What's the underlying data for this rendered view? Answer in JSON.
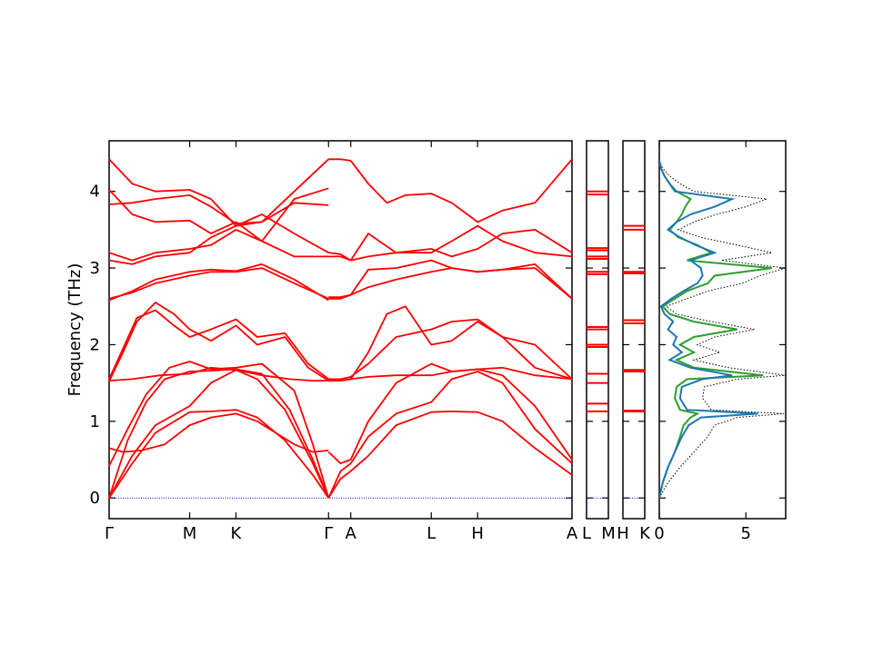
{
  "chart_data": [
    {
      "type": "line",
      "name": "phonon-band-structure",
      "ylabel": "Frequency (THz)",
      "ylim": [
        -0.27,
        4.66
      ],
      "yticks": [
        0,
        1,
        2,
        3,
        4
      ],
      "segments": [
        {
          "xlim": [
            0,
            1
          ],
          "ticks": [
            {
              "x": 0,
              "label": "Γ"
            },
            {
              "x": 0.174,
              "label": "M"
            },
            {
              "x": 0.274,
              "label": "K"
            },
            {
              "x": 0.474,
              "label": "Γ"
            },
            {
              "x": 0.522,
              "label": "A"
            },
            {
              "x": 0.696,
              "label": "L"
            },
            {
              "x": 0.796,
              "label": "H"
            },
            {
              "x": 1.0,
              "label": "A"
            }
          ]
        },
        {
          "xlim": [
            0,
            1
          ],
          "ticks": [
            {
              "x": 0,
              "label": "L"
            },
            {
              "x": 1,
              "label": "M"
            }
          ]
        },
        {
          "xlim": [
            0,
            1
          ],
          "ticks": [
            {
              "x": 0,
              "label": "H"
            },
            {
              "x": 1,
              "label": "K"
            }
          ]
        }
      ],
      "band_color": "#ff0000",
      "zero_line_color": "#0000ff",
      "bands": [
        {
          "x": [
            0,
            0.05,
            0.1,
            0.174,
            0.22,
            0.274,
            0.32,
            0.38,
            0.44,
            0.474
          ],
          "y": [
            0.0,
            0.45,
            0.85,
            1.12,
            1.13,
            1.15,
            1.05,
            0.75,
            0.3,
            0.0
          ]
        },
        {
          "x": [
            0,
            0.05,
            0.1,
            0.174,
            0.22,
            0.274,
            0.32,
            0.38,
            0.44,
            0.474
          ],
          "y": [
            0.0,
            0.55,
            0.95,
            1.2,
            1.5,
            1.67,
            1.55,
            1.15,
            0.45,
            0.0
          ]
        },
        {
          "x": [
            0,
            0.04,
            0.08,
            0.12,
            0.174,
            0.22,
            0.274,
            0.33,
            0.39,
            0.44,
            0.474
          ],
          "y": [
            0.0,
            0.75,
            1.25,
            1.55,
            1.65,
            1.66,
            1.68,
            1.62,
            1.15,
            0.5,
            0.0
          ]
        },
        {
          "x": [
            0,
            0.04,
            0.08,
            0.13,
            0.174,
            0.22,
            0.274,
            0.33,
            0.4,
            0.44,
            0.474
          ],
          "y": [
            0.42,
            0.9,
            1.35,
            1.7,
            1.78,
            1.68,
            1.7,
            1.75,
            1.4,
            0.7,
            0.0
          ]
        },
        {
          "x": [
            0,
            0.03,
            0.07,
            0.12,
            0.174,
            0.22,
            0.274,
            0.32,
            0.36,
            0.4,
            0.44,
            0.474
          ],
          "y": [
            0.65,
            0.6,
            0.62,
            0.7,
            0.95,
            1.05,
            1.1,
            1.0,
            0.85,
            0.7,
            0.6,
            0.62
          ]
        },
        {
          "x": [
            0,
            0.05,
            0.11,
            0.174,
            0.22,
            0.274,
            0.33,
            0.39,
            0.44,
            0.474
          ],
          "y": [
            1.53,
            1.55,
            1.6,
            1.62,
            1.7,
            1.67,
            1.6,
            1.55,
            1.53,
            1.53
          ]
        },
        {
          "x": [
            0,
            0.03,
            0.06,
            0.1,
            0.14,
            0.174,
            0.22,
            0.274,
            0.32,
            0.38,
            0.43,
            0.474
          ],
          "y": [
            1.52,
            1.9,
            2.3,
            2.55,
            2.4,
            2.2,
            2.05,
            2.25,
            2.0,
            2.1,
            1.7,
            1.53
          ]
        },
        {
          "x": [
            0,
            0.03,
            0.06,
            0.1,
            0.14,
            0.174,
            0.22,
            0.274,
            0.32,
            0.38,
            0.43,
            0.474
          ],
          "y": [
            1.55,
            1.95,
            2.35,
            2.45,
            2.25,
            2.1,
            2.2,
            2.33,
            2.1,
            2.15,
            1.75,
            1.55
          ]
        },
        {
          "x": [
            0,
            0.05,
            0.1,
            0.174,
            0.22,
            0.274,
            0.33,
            0.4,
            0.474
          ],
          "y": [
            2.6,
            2.68,
            2.8,
            2.9,
            2.95,
            2.95,
            3.0,
            2.8,
            2.6
          ]
        },
        {
          "x": [
            0,
            0.05,
            0.1,
            0.174,
            0.22,
            0.274,
            0.33,
            0.4,
            0.474
          ],
          "y": [
            2.58,
            2.7,
            2.85,
            2.95,
            2.98,
            2.96,
            3.05,
            2.85,
            2.58
          ]
        },
        {
          "x": [
            0,
            0.05,
            0.1,
            0.174,
            0.22,
            0.274,
            0.33,
            0.4,
            0.474
          ],
          "y": [
            3.1,
            3.05,
            3.15,
            3.2,
            3.4,
            3.55,
            3.7,
            3.45,
            3.2
          ]
        },
        {
          "x": [
            0,
            0.05,
            0.1,
            0.174,
            0.22,
            0.274,
            0.33,
            0.4,
            0.474
          ],
          "y": [
            3.2,
            3.1,
            3.2,
            3.25,
            3.3,
            3.5,
            3.35,
            3.15,
            3.15
          ]
        },
        {
          "x": [
            0,
            0.05,
            0.1,
            0.174,
            0.22,
            0.274,
            0.33,
            0.4,
            0.474
          ],
          "y": [
            3.83,
            3.85,
            3.9,
            3.95,
            3.8,
            3.58,
            3.6,
            3.85,
            3.82
          ]
        },
        {
          "x": [
            0,
            0.05,
            0.1,
            0.174,
            0.22,
            0.274,
            0.33,
            0.4,
            0.474
          ],
          "y": [
            4.02,
            3.7,
            3.6,
            3.62,
            3.45,
            3.6,
            3.35,
            3.9,
            4.04
          ]
        },
        {
          "x": [
            0,
            0.05,
            0.1,
            0.174,
            0.22,
            0.274,
            0.33,
            0.4,
            0.474
          ],
          "y": [
            4.42,
            4.1,
            4.0,
            4.02,
            3.9,
            3.55,
            3.6,
            4.0,
            4.42
          ]
        },
        {
          "x": [
            0.474,
            0.5,
            0.522,
            0.56,
            0.62,
            0.696,
            0.74,
            0.796,
            0.85,
            0.92,
            1.0
          ],
          "y": [
            0.0,
            0.25,
            0.35,
            0.55,
            0.95,
            1.12,
            1.13,
            1.12,
            1.0,
            0.65,
            0.3
          ]
        },
        {
          "x": [
            0.474,
            0.5,
            0.522,
            0.56,
            0.62,
            0.696,
            0.74,
            0.796,
            0.85,
            0.92,
            1.0
          ],
          "y": [
            0.0,
            0.35,
            0.45,
            0.8,
            1.1,
            1.25,
            1.55,
            1.65,
            1.5,
            0.9,
            0.45
          ]
        },
        {
          "x": [
            0.474,
            0.5,
            0.522,
            0.56,
            0.62,
            0.696,
            0.74,
            0.796,
            0.85,
            0.92,
            1.0
          ],
          "y": [
            0.6,
            0.45,
            0.5,
            1.0,
            1.5,
            1.75,
            1.65,
            1.68,
            1.6,
            1.2,
            0.5
          ]
        },
        {
          "x": [
            0.474,
            0.5,
            0.522,
            0.56,
            0.62,
            0.696,
            0.74,
            0.796,
            0.85,
            0.92,
            1.0
          ],
          "y": [
            1.53,
            1.53,
            1.55,
            1.58,
            1.6,
            1.6,
            1.65,
            1.68,
            1.7,
            1.6,
            1.55
          ]
        },
        {
          "x": [
            0.474,
            0.5,
            0.522,
            0.56,
            0.6,
            0.64,
            0.696,
            0.74,
            0.796,
            0.85,
            0.92,
            1.0
          ],
          "y": [
            1.53,
            1.53,
            1.55,
            1.9,
            2.4,
            2.5,
            2.0,
            2.05,
            2.3,
            2.1,
            1.7,
            1.55
          ]
        },
        {
          "x": [
            0.474,
            0.5,
            0.522,
            0.56,
            0.62,
            0.696,
            0.74,
            0.796,
            0.85,
            0.92,
            1.0
          ],
          "y": [
            1.55,
            1.55,
            1.58,
            1.75,
            2.1,
            2.2,
            2.3,
            2.33,
            2.1,
            2.0,
            1.55
          ]
        },
        {
          "x": [
            0.474,
            0.5,
            0.522,
            0.56,
            0.62,
            0.696,
            0.74,
            0.796,
            0.85,
            0.92,
            1.0
          ],
          "y": [
            2.6,
            2.6,
            2.65,
            2.75,
            2.85,
            2.95,
            3.0,
            2.95,
            2.98,
            3.0,
            2.6
          ]
        },
        {
          "x": [
            0.474,
            0.5,
            0.522,
            0.56,
            0.62,
            0.696,
            0.74,
            0.796,
            0.85,
            0.92,
            1.0
          ],
          "y": [
            2.62,
            2.62,
            2.65,
            2.98,
            3.0,
            3.1,
            3.0,
            2.95,
            2.98,
            3.05,
            2.6
          ]
        },
        {
          "x": [
            0.474,
            0.5,
            0.522,
            0.56,
            0.62,
            0.696,
            0.74,
            0.796,
            0.85,
            0.92,
            1.0
          ],
          "y": [
            3.15,
            3.15,
            3.1,
            3.45,
            3.2,
            3.2,
            3.35,
            3.55,
            3.35,
            3.2,
            3.15
          ]
        },
        {
          "x": [
            0.474,
            0.5,
            0.522,
            0.56,
            0.62,
            0.696,
            0.74,
            0.796,
            0.85,
            0.92,
            1.0
          ],
          "y": [
            3.2,
            3.18,
            3.1,
            3.15,
            3.2,
            3.25,
            3.15,
            3.25,
            3.45,
            3.5,
            3.2
          ]
        },
        {
          "x": [
            0.474,
            0.5,
            0.522,
            0.56,
            0.6,
            0.64,
            0.696,
            0.74,
            0.796,
            0.85,
            0.92,
            1.0
          ],
          "y": [
            4.42,
            4.42,
            4.4,
            4.1,
            3.85,
            3.95,
            3.97,
            3.85,
            3.6,
            3.75,
            3.85,
            4.42
          ]
        }
      ],
      "flat_segments": [
        {
          "panel": 1,
          "y": [
            0.0,
            1.13,
            1.23,
            1.5,
            1.62,
            1.97,
            2.0,
            2.2,
            2.23,
            2.92,
            2.95,
            3.12,
            3.15,
            3.23,
            3.26,
            3.96,
            4.0
          ]
        },
        {
          "panel": 2,
          "y": [
            0.0,
            1.13,
            1.14,
            1.65,
            1.67,
            2.28,
            2.32,
            2.93,
            2.95,
            3.5,
            3.55
          ]
        }
      ]
    },
    {
      "type": "line",
      "name": "density-of-states",
      "xticks": [
        0,
        5
      ],
      "xlim": [
        0,
        7.3
      ],
      "ylim": [
        -0.27,
        4.66
      ],
      "series": [
        {
          "color": "#1f77b4",
          "style": "solid",
          "y": [
            0.0,
            0.2,
            0.4,
            0.6,
            0.8,
            0.95,
            1.05,
            1.1,
            1.15,
            1.3,
            1.45,
            1.55,
            1.6,
            1.7,
            1.8,
            1.9,
            2.0,
            2.1,
            2.2,
            2.3,
            2.4,
            2.5,
            2.6,
            2.7,
            2.8,
            2.9,
            3.0,
            3.1,
            3.2,
            3.3,
            3.4,
            3.5,
            3.6,
            3.7,
            3.8,
            3.9,
            4.0,
            4.1,
            4.2,
            4.3,
            4.4
          ],
          "x": [
            0.0,
            0.2,
            0.5,
            0.9,
            1.3,
            1.7,
            2.4,
            5.7,
            1.6,
            1.2,
            1.3,
            2.5,
            4.2,
            1.8,
            0.6,
            1.3,
            0.8,
            1.0,
            0.5,
            0.8,
            0.3,
            0.1,
            0.7,
            1.4,
            2.2,
            2.5,
            2.4,
            1.8,
            3.2,
            2.1,
            1.2,
            0.5,
            1.0,
            1.8,
            3.2,
            4.2,
            0.9,
            0.6,
            0.3,
            0.1,
            0.0
          ]
        },
        {
          "color": "#2ca02c",
          "style": "solid",
          "y": [
            0.0,
            0.2,
            0.4,
            0.6,
            0.8,
            0.95,
            1.05,
            1.1,
            1.15,
            1.3,
            1.45,
            1.55,
            1.6,
            1.7,
            1.8,
            1.9,
            2.0,
            2.1,
            2.2,
            2.3,
            2.4,
            2.5,
            2.6,
            2.7,
            2.8,
            2.9,
            3.0,
            3.1,
            3.2,
            3.3,
            3.4,
            3.5,
            3.6,
            3.7,
            3.8,
            3.9,
            4.0,
            4.1,
            4.2,
            4.3,
            4.4
          ],
          "x": [
            0.0,
            0.2,
            0.5,
            0.9,
            1.2,
            1.4,
            1.8,
            2.2,
            1.2,
            0.9,
            1.0,
            1.6,
            6.0,
            2.0,
            1.0,
            2.0,
            1.2,
            2.0,
            4.5,
            2.0,
            0.6,
            0.2,
            0.9,
            1.6,
            2.8,
            3.2,
            6.5,
            1.6,
            3.0,
            2.2,
            1.1,
            0.6,
            1.0,
            1.3,
            1.5,
            1.8,
            1.0,
            0.6,
            0.3,
            0.1,
            0.0
          ]
        },
        {
          "color": "#000000",
          "style": "dotted",
          "y": [
            0.0,
            0.2,
            0.4,
            0.6,
            0.8,
            0.95,
            1.05,
            1.1,
            1.15,
            1.3,
            1.45,
            1.55,
            1.6,
            1.7,
            1.8,
            1.9,
            2.0,
            2.1,
            2.2,
            2.3,
            2.4,
            2.5,
            2.6,
            2.7,
            2.8,
            2.9,
            3.0,
            3.1,
            3.2,
            3.3,
            3.4,
            3.5,
            3.6,
            3.7,
            3.8,
            3.9,
            4.0,
            4.1,
            4.2,
            4.3,
            4.4
          ],
          "x": [
            0.0,
            0.5,
            1.2,
            2.0,
            2.8,
            3.2,
            4.5,
            7.2,
            3.0,
            2.5,
            2.6,
            4.5,
            10,
            4.0,
            2.0,
            3.5,
            2.2,
            3.2,
            5.5,
            3.0,
            1.0,
            0.4,
            1.6,
            2.8,
            4.8,
            5.8,
            9.0,
            3.6,
            6.5,
            4.5,
            2.4,
            1.1,
            2.0,
            3.3,
            5.0,
            6.2,
            2.0,
            1.2,
            0.6,
            0.2,
            0.0
          ]
        }
      ]
    }
  ]
}
